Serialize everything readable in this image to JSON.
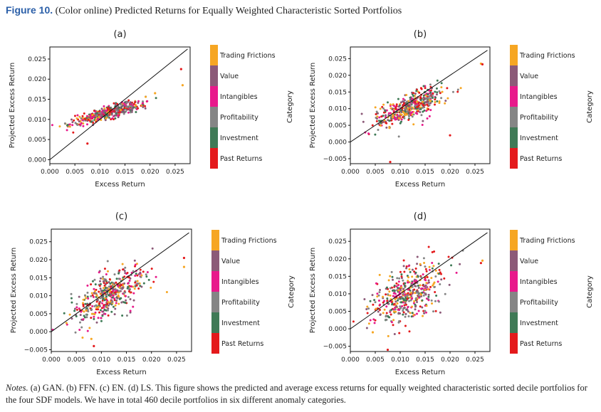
{
  "figure": {
    "label": "Figure 10.",
    "title": "(Color online) Predicted Returns for Equally Weighted Characteristic Sorted Portfolios",
    "notes_label": "Notes.",
    "notes_text": " (a) GAN. (b) FFN. (c) EN. (d) LS. This figure shows the predicted and average excess returns for equally weighted characteristic sorted decile portfolios for the four SDF models. We have in total 460 decile portfolios in six different anomaly categories."
  },
  "legend": {
    "title": "Category",
    "categories": [
      {
        "name": "Trading Frictions",
        "color": "#f6a623"
      },
      {
        "name": "Value",
        "color": "#8c5a78"
      },
      {
        "name": "Intangibles",
        "color": "#e8198b"
      },
      {
        "name": "Profitability",
        "color": "#858585"
      },
      {
        "name": "Investment",
        "color": "#3f7a56"
      },
      {
        "name": "Past Returns",
        "color": "#e41a1c"
      }
    ]
  },
  "chart_data": [
    {
      "panel": "(a)",
      "type": "scatter",
      "xlabel": "Excess Return",
      "ylabel": "Projected Excess Return",
      "xlim": [
        0.0,
        0.028
      ],
      "ylim": [
        -0.001,
        0.028
      ],
      "xticks": [
        "0.000",
        "0.005",
        "0.010",
        "0.015",
        "0.020",
        "0.025"
      ],
      "yticks": [
        "0.000",
        "0.005",
        "0.010",
        "0.015",
        "0.020",
        "0.025"
      ],
      "ytick_values": [
        0.0,
        0.005,
        0.01,
        0.015,
        0.02,
        0.025
      ],
      "diagonal": [
        0.0,
        0.0275
      ],
      "cloud": {
        "cx": 0.0115,
        "cy": 0.0115,
        "sx": 0.0035,
        "sy": 0.0015,
        "rho": 0.85,
        "n": 460
      },
      "extra_points": [
        {
          "x": 0.0262,
          "y": 0.0225,
          "category": "Past Returns"
        },
        {
          "x": 0.0265,
          "y": 0.0185,
          "category": "Trading Frictions"
        },
        {
          "x": 0.021,
          "y": 0.0165,
          "category": "Trading Frictions"
        },
        {
          "x": 0.0075,
          "y": 0.004,
          "category": "Past Returns"
        },
        {
          "x": 0.0035,
          "y": 0.0085,
          "category": "Investment"
        }
      ]
    },
    {
      "panel": "(b)",
      "type": "scatter",
      "xlabel": "Excess Return",
      "ylabel": "Projected Excess Return",
      "xlim": [
        0.0,
        0.028
      ],
      "ylim": [
        -0.0065,
        0.0285
      ],
      "xticks": [
        "0.000",
        "0.005",
        "0.010",
        "0.015",
        "0.020",
        "0.025"
      ],
      "yticks": [
        "−0.005",
        "0.000",
        "0.005",
        "0.010",
        "0.015",
        "0.020",
        "0.025"
      ],
      "ytick_values": [
        -0.005,
        0.0,
        0.005,
        0.01,
        0.015,
        0.02,
        0.025
      ],
      "diagonal": [
        0.0,
        0.0275
      ],
      "cloud": {
        "cx": 0.0118,
        "cy": 0.0105,
        "sx": 0.0033,
        "sy": 0.0028,
        "rho": 0.72,
        "n": 460
      },
      "extra_points": [
        {
          "x": 0.0262,
          "y": 0.0235,
          "category": "Trading Frictions"
        },
        {
          "x": 0.0265,
          "y": 0.0233,
          "category": "Past Returns"
        },
        {
          "x": 0.008,
          "y": -0.006,
          "category": "Past Returns"
        },
        {
          "x": 0.02,
          "y": 0.002,
          "category": "Past Returns"
        }
      ]
    },
    {
      "panel": "(c)",
      "type": "scatter",
      "xlabel": "Excess Return",
      "ylabel": "Projected Excess Return",
      "xlim": [
        0.0,
        0.028
      ],
      "ylim": [
        -0.0055,
        0.0285
      ],
      "xticks": [
        "0.000",
        "0.005",
        "0.010",
        "0.015",
        "0.020",
        "0.025"
      ],
      "yticks": [
        "−0.005",
        "0.000",
        "0.005",
        "0.010",
        "0.015",
        "0.020",
        "0.025"
      ],
      "ytick_values": [
        -0.005,
        0.0,
        0.005,
        0.01,
        0.015,
        0.02,
        0.025
      ],
      "diagonal": [
        0.0,
        0.0275
      ],
      "cloud": {
        "cx": 0.0118,
        "cy": 0.0105,
        "sx": 0.0035,
        "sy": 0.0038,
        "rho": 0.62,
        "n": 460
      },
      "extra_points": [
        {
          "x": 0.0265,
          "y": 0.0205,
          "category": "Past Returns"
        },
        {
          "x": 0.0265,
          "y": 0.018,
          "category": "Trading Frictions"
        },
        {
          "x": 0.0085,
          "y": -0.004,
          "category": "Past Returns"
        },
        {
          "x": 0.008,
          "y": -0.002,
          "category": "Trading Frictions"
        }
      ]
    },
    {
      "panel": "(d)",
      "type": "scatter",
      "xlabel": "Excess Return",
      "ylabel": "Projected Excess Return",
      "xlim": [
        0.0,
        0.028
      ],
      "ylim": [
        -0.0065,
        0.0285
      ],
      "xticks": [
        "0.000",
        "0.005",
        "0.010",
        "0.015",
        "0.020",
        "0.025"
      ],
      "yticks": [
        "−0.005",
        "0.000",
        "0.005",
        "0.010",
        "0.015",
        "0.020",
        "0.025"
      ],
      "ytick_values": [
        -0.005,
        0.0,
        0.005,
        0.01,
        0.015,
        0.02,
        0.025
      ],
      "diagonal": [
        0.0,
        0.0275
      ],
      "cloud": {
        "cx": 0.0115,
        "cy": 0.01,
        "sx": 0.0036,
        "sy": 0.0045,
        "rho": 0.55,
        "n": 460
      },
      "extra_points": [
        {
          "x": 0.0265,
          "y": 0.0195,
          "category": "Trading Frictions"
        },
        {
          "x": 0.0262,
          "y": 0.0188,
          "category": "Past Returns"
        },
        {
          "x": 0.0075,
          "y": -0.006,
          "category": "Past Returns"
        },
        {
          "x": 0.0045,
          "y": -0.001,
          "category": "Trading Frictions"
        }
      ]
    }
  ]
}
